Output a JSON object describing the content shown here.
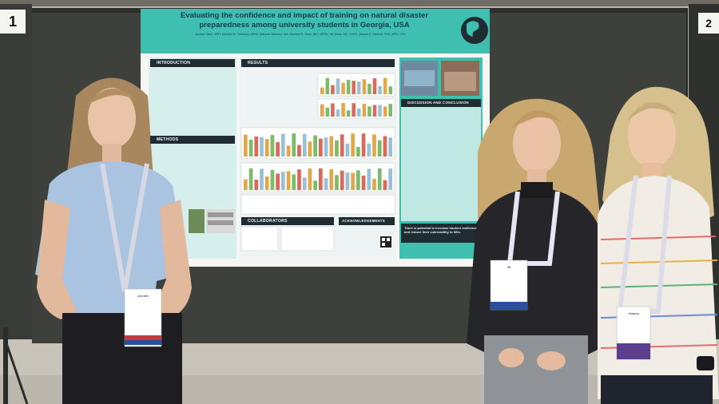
{
  "signs": {
    "left_number": "1",
    "right_number": "2"
  },
  "poster": {
    "title_line1": "Evaluating the confidence and impact of training on natural disaster",
    "title_line2": "preparedness among university students in Georgia, USA",
    "authors": "Jessica Tamn, MPH; Michelle M. Tremblay, MPhil; Deborah Martinez, MA; Spencer R. Riner, MCI, MPSA; Jill Johns, MS, CHES; Jessica S. Schmidt, PhD, MPH, CPH",
    "sections": {
      "introduction": "INTRODUCTION",
      "methods": "METHODS",
      "results": "RESULTS",
      "discussion": "DISCUSSION AND CONCLUSION",
      "collaborators": "COLLABORATORS",
      "acknowledgements": "ACKNOWLEDGEMENTS"
    },
    "callout": "There is potential to increase student resilience and reduce their vulnerability to NDs."
  },
  "badges": {
    "left": "Jennifer",
    "middle": "Jill",
    "right": "Jessica"
  },
  "colors": {
    "poster_teal": "#3fbfb0",
    "poster_header": "#1f2d33",
    "board": "#3d3f3b",
    "lanyard_left": "#d8d8e4",
    "lanyard_middle": "#e6e6f2",
    "lanyard_right": "#dcdce8"
  }
}
